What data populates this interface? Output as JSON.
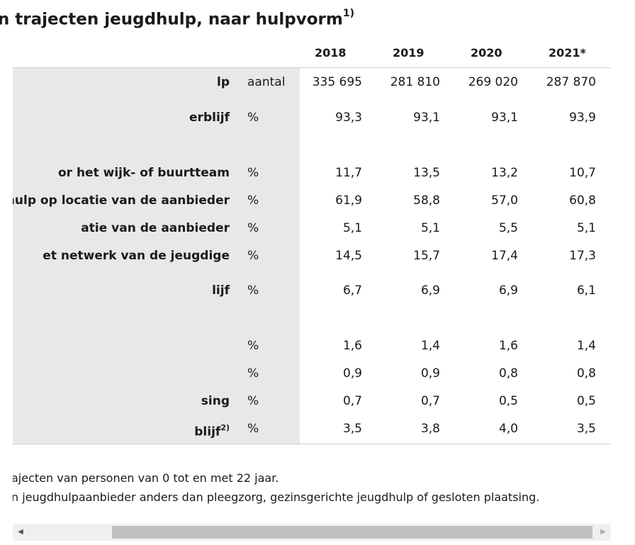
{
  "title": {
    "text": "Jeugdhulp: omvang en aard van de lopende en beëindigen trajecten jeugdhulp, naar hulpvorm",
    "visible_text": "nen trajecten jeugdhulp, naar hulpvorm",
    "sup": "1)"
  },
  "columns": [
    "2018",
    "2019",
    "2020",
    "2021*"
  ],
  "rows": [
    {
      "label": "lp",
      "sup": "",
      "unit": "aantal",
      "values": [
        "335 695",
        "281 810",
        "269 020",
        "287 870"
      ]
    },
    {
      "label": "erblijf",
      "sup": "",
      "unit": "%",
      "values": [
        "93,3",
        "93,1",
        "93,1",
        "93,9"
      ]
    },
    {
      "label": "or het wijk- of buurtteam",
      "sup": "",
      "unit": "%",
      "values": [
        "11,7",
        "13,5",
        "13,2",
        "10,7"
      ]
    },
    {
      "label": "gdhulp op locatie van de aanbieder",
      "sup": "",
      "unit": "%",
      "values": [
        "61,9",
        "58,8",
        "57,0",
        "60,8"
      ]
    },
    {
      "label": "atie van de aanbieder",
      "sup": "",
      "unit": "%",
      "values": [
        "5,1",
        "5,1",
        "5,5",
        "5,1"
      ]
    },
    {
      "label": "et netwerk van de jeugdige",
      "sup": "",
      "unit": "%",
      "values": [
        "14,5",
        "15,7",
        "17,4",
        "17,3"
      ]
    },
    {
      "label": "lijf",
      "sup": "",
      "unit": "%",
      "values": [
        "6,7",
        "6,9",
        "6,9",
        "6,1"
      ]
    },
    {
      "label": "",
      "sup": "",
      "unit": "%",
      "values": [
        "1,6",
        "1,4",
        "1,6",
        "1,4"
      ]
    },
    {
      "label": "",
      "sup": "",
      "unit": "%",
      "values": [
        "0,9",
        "0,9",
        "0,8",
        "0,8"
      ]
    },
    {
      "label": "sing",
      "sup": "",
      "unit": "%",
      "values": [
        "0,7",
        "0,7",
        "0,5",
        "0,5"
      ]
    },
    {
      "label": "blijf",
      "sup": "2)",
      "unit": "%",
      "values": [
        "3,5",
        "3,8",
        "4,0",
        "3,5"
      ]
    }
  ],
  "notes": [
    "ajecten van personen van 0 tot en met 22 jaar.",
    "n jeugdhulpaanbieder anders dan pleegzorg, gezinsgerichte jeugdhulp of gesloten plaatsing."
  ],
  "scrollbar": {
    "left_arrow": "◀",
    "right_arrow": "▶"
  }
}
